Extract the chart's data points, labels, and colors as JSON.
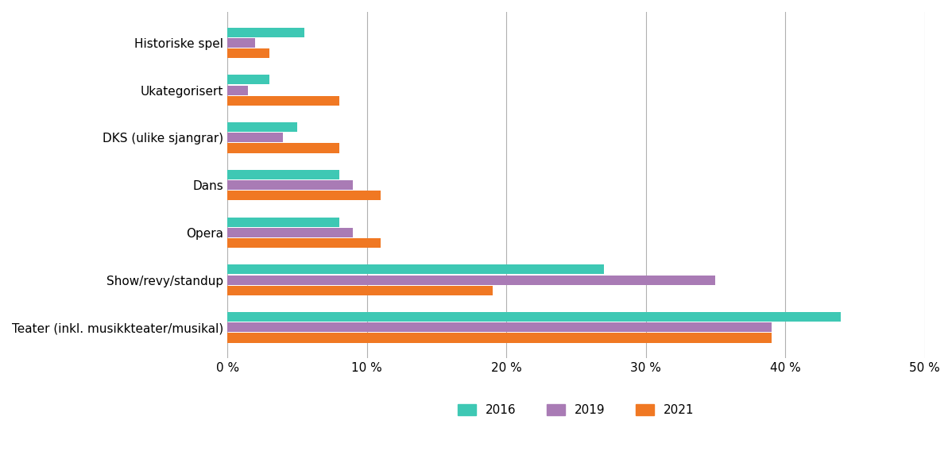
{
  "categories": [
    "Teater (inkl. musikkteater/musikal)",
    "Show/revy/standup",
    "Opera",
    "Dans",
    "DKS (ulike sjangrar)",
    "Ukategorisert",
    "Historiske spel"
  ],
  "series": {
    "2016": [
      44.0,
      27.0,
      8.0,
      8.0,
      5.0,
      3.0,
      5.5
    ],
    "2019": [
      39.0,
      35.0,
      9.0,
      9.0,
      4.0,
      1.5,
      2.0
    ],
    "2021": [
      39.0,
      19.0,
      11.0,
      11.0,
      8.0,
      8.0,
      3.0
    ]
  },
  "colors": {
    "2016": "#3EC8B4",
    "2019": "#A97BB5",
    "2021": "#F07823"
  },
  "xlim": [
    0,
    50
  ],
  "xticks": [
    0,
    10,
    20,
    30,
    40,
    50
  ],
  "xticklabels": [
    "0 %",
    "10 %",
    "20 %",
    "30 %",
    "40 %",
    "50 %"
  ],
  "bar_height": 0.22,
  "background_color": "#ffffff",
  "legend_labels": [
    "2016",
    "2019",
    "2021"
  ],
  "grid_color": "#b0b0b0"
}
